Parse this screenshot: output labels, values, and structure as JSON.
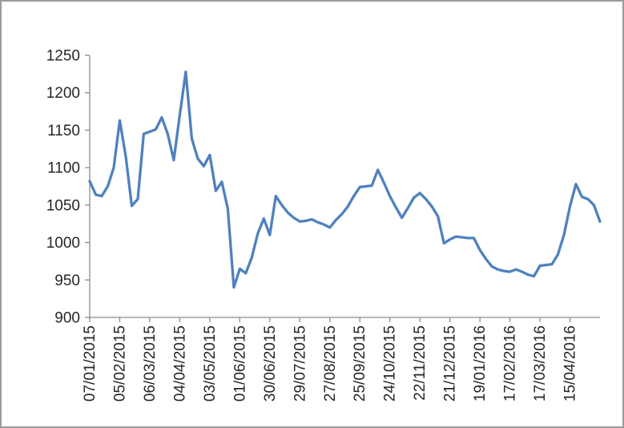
{
  "chart_data": {
    "type": "line",
    "title": "",
    "legend": "none",
    "grid": "off",
    "x_labels": [
      "07/01/2015",
      "05/02/2015",
      "06/03/2015",
      "04/04/2015",
      "03/05/2015",
      "01/06/2015",
      "30/06/2015",
      "29/07/2015",
      "27/08/2015",
      "25/09/2015",
      "24/10/2015",
      "22/11/2015",
      "21/12/2015",
      "19/01/2016",
      "17/02/2016",
      "17/03/2016",
      "15/04/2016"
    ],
    "label_every": 5,
    "values": [
      1082,
      1064,
      1062,
      1075,
      1100,
      1163,
      1115,
      1049,
      1058,
      1145,
      1148,
      1151,
      1167,
      1145,
      1110,
      1170,
      1228,
      1139,
      1112,
      1102,
      1117,
      1069,
      1081,
      1045,
      940,
      965,
      959,
      980,
      1012,
      1032,
      1010,
      1062,
      1050,
      1040,
      1033,
      1028,
      1029,
      1031,
      1027,
      1024,
      1020,
      1030,
      1038,
      1048,
      1062,
      1074,
      1075,
      1076,
      1097,
      1080,
      1062,
      1047,
      1033,
      1046,
      1060,
      1066,
      1058,
      1048,
      1035,
      999,
      1004,
      1008,
      1007,
      1006,
      1006,
      990,
      978,
      968,
      964,
      962,
      961,
      964,
      961,
      957,
      955,
      969,
      970,
      971,
      984,
      1010,
      1048,
      1078,
      1061,
      1058,
      1050,
      1028
    ],
    "y_ticks": [
      900,
      950,
      1000,
      1050,
      1100,
      1150,
      1200,
      1250
    ],
    "ylim": [
      900,
      1250
    ],
    "series_color": "#4F81BD",
    "axis_color": "#8C8C8C",
    "text_color": "#262626"
  }
}
